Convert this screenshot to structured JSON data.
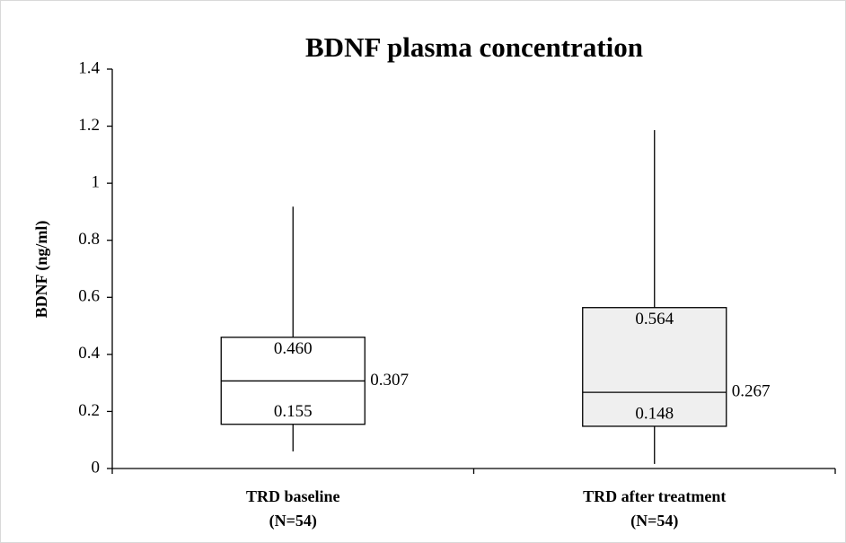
{
  "chart_data": {
    "type": "box",
    "title": "BDNF plasma concentration",
    "y_label": "BDNF (ng/ml)",
    "categories": [
      [
        "TRD baseline",
        "(N=54)"
      ],
      [
        "TRD after treatment",
        "(N=54)"
      ]
    ],
    "boxes": [
      {
        "min": 0.06,
        "q1": 0.155,
        "median": 0.307,
        "q3": 0.46,
        "max": 0.918,
        "color": "#ffffff",
        "value_labels": {
          "q1": "0.155",
          "median": "0.307",
          "q3": "0.460"
        }
      },
      {
        "min": 0.016,
        "q1": 0.148,
        "median": 0.267,
        "q3": 0.564,
        "max": 1.186,
        "color": "#efefef",
        "value_labels": {
          "q1": "0.148",
          "median": "0.267",
          "q3": "0.564"
        }
      }
    ],
    "ylim": [
      0,
      1.4
    ],
    "yticks": [
      0,
      0.2,
      0.4,
      0.6,
      0.8,
      1,
      1.2,
      1.4
    ]
  }
}
